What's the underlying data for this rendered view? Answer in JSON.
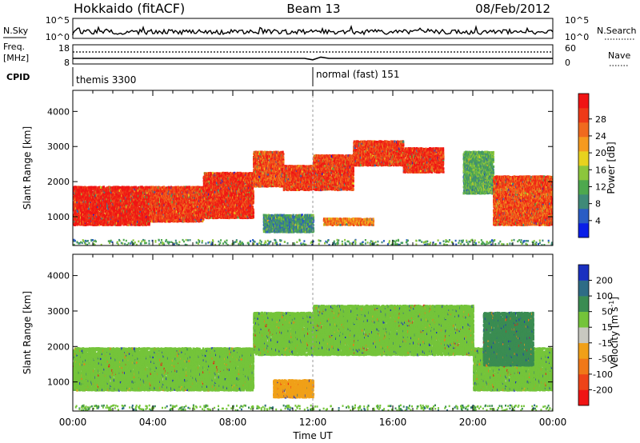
{
  "header": {
    "station": "Hokkaido (fitACF)",
    "beam": "Beam 13",
    "date": "08/Feb/2012"
  },
  "top_panels": {
    "nsky_label": "N.Sky",
    "nsearch_label": "N.Search",
    "nsky_ticks": [
      "10^5",
      "10^0"
    ],
    "nsearch_ticks": [
      "10^5",
      "10^0"
    ],
    "freq_label_line1": "Freq.",
    "freq_label_line2": "[MHz]",
    "freq_ticks": [
      "18",
      "8"
    ],
    "nave_label": "Nave",
    "nave_ticks": [
      "60",
      "0"
    ],
    "cpid_label": "CPID",
    "cpid_segments": [
      {
        "start_hour": 0,
        "label": "themis 3300"
      },
      {
        "start_hour": 12,
        "label": "normal (fast) 151"
      }
    ]
  },
  "chart_data": [
    {
      "type": "heatmap",
      "panel": "power",
      "ylabel": "Slant Range [km]",
      "xlim_hours": [
        0,
        24
      ],
      "ylim_km": [
        180,
        4600
      ],
      "yticks": [
        1000,
        2000,
        3000,
        4000
      ],
      "colorbar": {
        "label": "Power [dB]",
        "ticks": [
          4,
          8,
          12,
          16,
          20,
          24,
          28
        ],
        "colors": [
          "#0a1ee8",
          "#2a5cc4",
          "#3f8a78",
          "#4ea84e",
          "#8cc63c",
          "#e8d21e",
          "#f59a1e",
          "#f06a1e",
          "#ee3a18",
          "#f01414"
        ]
      },
      "regions": [
        {
          "x": [
            0.0,
            3.8
          ],
          "y": [
            800,
            1900
          ],
          "value": 28
        },
        {
          "x": [
            3.8,
            6.5
          ],
          "y": [
            900,
            1900
          ],
          "value": 26
        },
        {
          "x": [
            6.5,
            9.0
          ],
          "y": [
            1000,
            2300
          ],
          "value": 27
        },
        {
          "x": [
            9.0,
            10.5
          ],
          "y": [
            1900,
            2900
          ],
          "value": 25
        },
        {
          "x": [
            10.5,
            12.0
          ],
          "y": [
            1800,
            2500
          ],
          "value": 26
        },
        {
          "x": [
            12.0,
            14.0
          ],
          "y": [
            1800,
            2800
          ],
          "value": 26
        },
        {
          "x": [
            14.0,
            16.5
          ],
          "y": [
            2500,
            3200
          ],
          "value": 26
        },
        {
          "x": [
            16.5,
            18.5
          ],
          "y": [
            2300,
            3000
          ],
          "value": 27
        },
        {
          "x": [
            19.5,
            21.0
          ],
          "y": [
            1700,
            2900
          ],
          "value": 12
        },
        {
          "x": [
            21.0,
            24.0
          ],
          "y": [
            800,
            2200
          ],
          "value": 25
        },
        {
          "x": [
            9.5,
            12.0
          ],
          "y": [
            600,
            1100
          ],
          "value": 10
        },
        {
          "x": [
            12.5,
            15.0
          ],
          "y": [
            800,
            1000
          ],
          "value": 22
        }
      ]
    },
    {
      "type": "heatmap",
      "panel": "velocity",
      "ylabel": "Slant Range [km]",
      "xlabel": "Time UT",
      "xlim_hours": [
        0,
        24
      ],
      "xticks": [
        "00:00",
        "04:00",
        "08:00",
        "12:00",
        "16:00",
        "20:00",
        "00:00"
      ],
      "ylim_km": [
        180,
        4600
      ],
      "yticks": [
        1000,
        2000,
        3000,
        4000
      ],
      "colorbar": {
        "label": "Velocity [m s^-1]",
        "ticks": [
          200,
          100,
          50,
          15,
          -15,
          -50,
          -100,
          -200
        ],
        "colors": [
          "#1a30c0",
          "#2e6c86",
          "#3a8c52",
          "#74c43a",
          "#c8c8c0",
          "#f0a018",
          "#f07818",
          "#ee4418",
          "#f01414"
        ]
      },
      "regions": [
        {
          "x": [
            0.0,
            9.0
          ],
          "y": [
            800,
            2000
          ],
          "value": 0
        },
        {
          "x": [
            9.0,
            12.0
          ],
          "y": [
            1800,
            3000
          ],
          "value": 0
        },
        {
          "x": [
            12.0,
            20.0
          ],
          "y": [
            1800,
            3200
          ],
          "value": 0
        },
        {
          "x": [
            20.0,
            24.0
          ],
          "y": [
            800,
            2000
          ],
          "value": 0
        },
        {
          "x": [
            10.0,
            12.0
          ],
          "y": [
            600,
            1100
          ],
          "value": -60
        },
        {
          "x": [
            20.5,
            23.0
          ],
          "y": [
            1500,
            3000
          ],
          "value": 40
        }
      ]
    }
  ]
}
